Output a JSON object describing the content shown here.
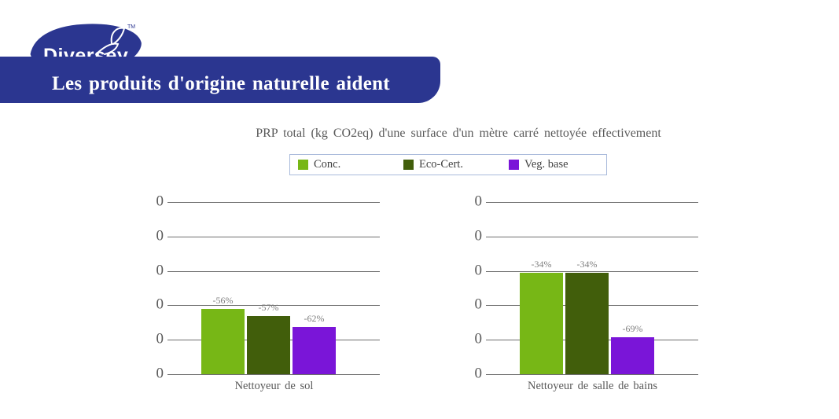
{
  "logo": {
    "brand": "Diversey",
    "trademark": "TM",
    "color": "#2B3690"
  },
  "banner": {
    "text": "Les produits d'origine naturelle aident",
    "bg_color": "#2B3690",
    "text_color": "#FFFFFF"
  },
  "chart_data": {
    "type": "bar",
    "title": "PRP total (kg CO2eq) d'une surface d'un mètre carré nettoyée effectivement",
    "legend": [
      {
        "label": "Conc.",
        "color": "#77B716"
      },
      {
        "label": "Eco-Cert.",
        "color": "#415E0B"
      },
      {
        "label": "Veg. base",
        "color": "#7A15D8"
      }
    ],
    "legend_position": "top",
    "legend_border_color": "#A9BADB",
    "y_axis": {
      "tick_labels": [
        "0",
        "0",
        "0",
        "0",
        "0",
        "0"
      ],
      "max_units": 5,
      "gridlines": true,
      "gridline_color": "#6E6E6E"
    },
    "groups": [
      {
        "category": "Nettoyeur de sol",
        "bars": [
          {
            "series": "Conc.",
            "label": "-56%",
            "height_units": 1.89
          },
          {
            "series": "Eco-Cert.",
            "label": "-57%",
            "height_units": 1.68
          },
          {
            "series": "Veg. base",
            "label": "-62%",
            "height_units": 1.37
          }
        ]
      },
      {
        "category": "Nettoyeur de salle de bains",
        "bars": [
          {
            "series": "Conc.",
            "label": "-34%",
            "height_units": 2.95
          },
          {
            "series": "Eco-Cert.",
            "label": "-34%",
            "height_units": 2.95
          },
          {
            "series": "Veg. base",
            "label": "-69%",
            "height_units": 1.07
          }
        ]
      }
    ],
    "text_colors": {
      "title": "#595959",
      "tick": "#595959",
      "bar_label": "#7F7F7F",
      "category": "#595959"
    }
  }
}
